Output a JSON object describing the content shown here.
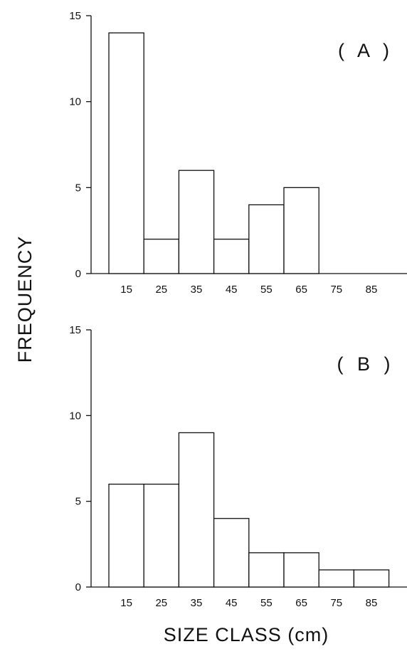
{
  "chart_data": [
    {
      "type": "bar",
      "panel_label": "( A )",
      "categories": [
        "15",
        "25",
        "35",
        "45",
        "55",
        "65",
        "75",
        "85"
      ],
      "values": [
        14,
        2,
        6,
        2,
        4,
        5,
        0,
        0
      ],
      "ylim": [
        0,
        15
      ],
      "yticks": [
        "0",
        "5",
        "10",
        "15"
      ],
      "grid": false
    },
    {
      "type": "bar",
      "panel_label": "( B )",
      "categories": [
        "15",
        "25",
        "35",
        "45",
        "55",
        "65",
        "75",
        "85"
      ],
      "values": [
        6,
        6,
        9,
        4,
        2,
        2,
        1,
        1
      ],
      "ylim": [
        0,
        15
      ],
      "yticks": [
        "0",
        "5",
        "10",
        "15"
      ],
      "grid": false
    }
  ],
  "ylabel": "FREQUENCY",
  "xlabel": "SIZE CLASS (cm)",
  "colors": {
    "bar_fill": "#ffffff",
    "stroke": "#111111"
  }
}
